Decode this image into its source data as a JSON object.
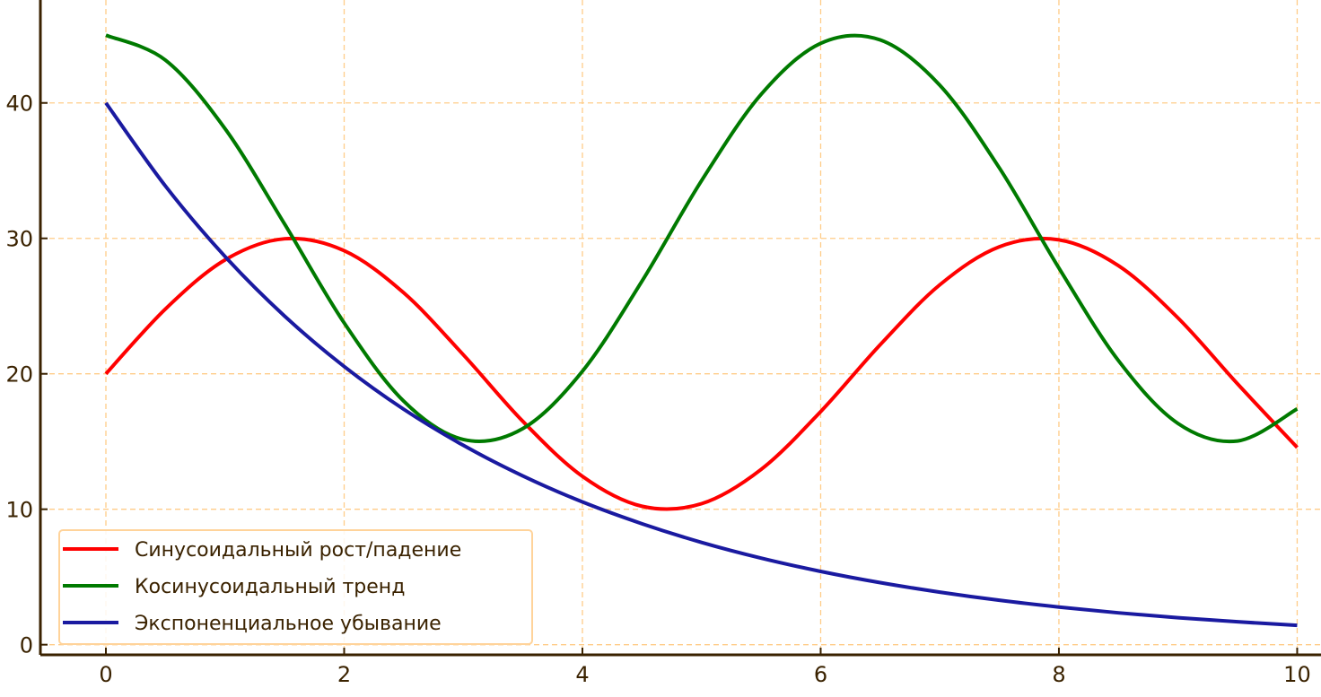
{
  "chart_data": {
    "type": "line",
    "title": "",
    "xlabel": "",
    "ylabel": "",
    "xlim": [
      -0.55,
      10.2
    ],
    "ylim": [
      -0.75,
      47.6
    ],
    "xticks": [
      0,
      2,
      4,
      6,
      8,
      10
    ],
    "yticks": [
      0,
      10,
      20,
      30,
      40
    ],
    "grid": true,
    "grid_color": "#ffcc88",
    "axis_color": "#3a2200",
    "legend_placement": "lower-left",
    "x": [
      0,
      0.5,
      1,
      1.5,
      2,
      2.5,
      3,
      3.5,
      4,
      4.5,
      5,
      5.5,
      6,
      6.5,
      7,
      7.5,
      8,
      8.5,
      9,
      9.5,
      10
    ],
    "series": [
      {
        "name": "Синусоидальный рост/падение",
        "color": "#ff0000",
        "values": [
          20,
          24.79,
          28.41,
          29.97,
          29.09,
          25.98,
          21.41,
          16.49,
          12.43,
          10.22,
          10.41,
          12.94,
          17.21,
          22.15,
          26.57,
          29.38,
          29.89,
          27.98,
          24.12,
          19.25,
          14.56
        ]
      },
      {
        "name": "Косинусоидальный тренд",
        "color": "#007a00",
        "values": [
          45,
          43.16,
          38.1,
          31.06,
          23.76,
          17.98,
          15.15,
          15.96,
          20.19,
          26.84,
          34.26,
          40.63,
          44.4,
          44.65,
          41.31,
          35.2,
          27.81,
          20.97,
          16.33,
          15.04,
          17.41
        ]
      },
      {
        "name": "Экспоненциальное убывание",
        "color": "#1a1aa0",
        "values": [
          40,
          33.86,
          28.66,
          24.26,
          20.54,
          17.38,
          14.72,
          12.46,
          10.54,
          8.93,
          7.55,
          6.39,
          5.41,
          4.58,
          3.88,
          3.28,
          2.78,
          2.35,
          1.99,
          1.69,
          1.43
        ]
      }
    ]
  }
}
